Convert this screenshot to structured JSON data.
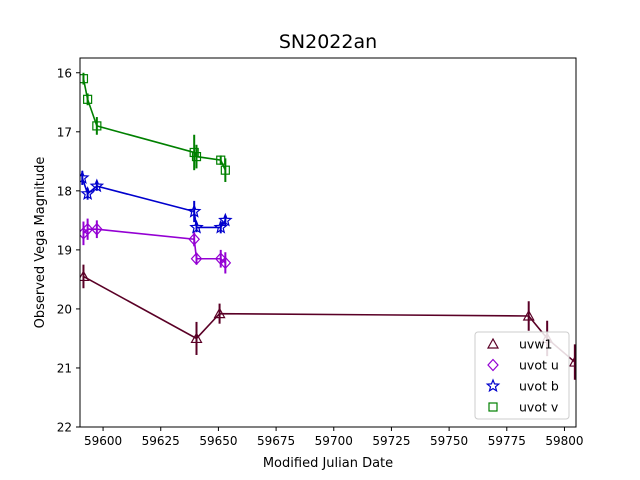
{
  "chart_data": {
    "type": "scatter",
    "title": "SN2022an",
    "xlabel": "Modified Julian Date",
    "ylabel": "Observed Vega Magnitude",
    "xlim": [
      59590,
      59805
    ],
    "ylim": [
      22,
      15.75
    ],
    "y_inverted": true,
    "xticks": [
      59600,
      59625,
      59650,
      59675,
      59700,
      59725,
      59750,
      59775,
      59800
    ],
    "yticks": [
      16,
      17,
      18,
      19,
      20,
      21,
      22
    ],
    "grid": false,
    "legend_position": "bottom-right",
    "series": [
      {
        "name": "uvw1",
        "color": "#5a0026",
        "marker": "triangle",
        "points": [
          {
            "x": 59591.5,
            "y": 19.45,
            "err": 0.2
          },
          {
            "x": 59640.5,
            "y": 20.5,
            "err": 0.28
          },
          {
            "x": 59650.5,
            "y": 20.08,
            "err": 0.17
          },
          {
            "x": 59784.5,
            "y": 20.12,
            "err": 0.25
          },
          {
            "x": 59792.5,
            "y": 20.5,
            "err": 0.3
          },
          {
            "x": 59804.5,
            "y": 20.9,
            "err": 0.3
          }
        ]
      },
      {
        "name": "uvot u",
        "color": "#9400d3",
        "marker": "diamond",
        "points": [
          {
            "x": 59591.5,
            "y": 18.72,
            "err": 0.2
          },
          {
            "x": 59593.3,
            "y": 18.65,
            "err": 0.18
          },
          {
            "x": 59597.3,
            "y": 18.65,
            "err": 0.15
          },
          {
            "x": 59639.5,
            "y": 18.82,
            "err": 0.12
          },
          {
            "x": 59640.5,
            "y": 19.15,
            "err": 0.1
          },
          {
            "x": 59651.0,
            "y": 19.15,
            "err": 0.15
          },
          {
            "x": 59653.0,
            "y": 19.22,
            "err": 0.18
          }
        ]
      },
      {
        "name": "uvot b",
        "color": "#0000cd",
        "marker": "star",
        "points": [
          {
            "x": 59591.0,
            "y": 17.78,
            "err": 0.12
          },
          {
            "x": 59593.3,
            "y": 18.05,
            "err": 0.1
          },
          {
            "x": 59597.3,
            "y": 17.92,
            "err": 0.08
          },
          {
            "x": 59639.5,
            "y": 18.35,
            "err": 0.18
          },
          {
            "x": 59640.5,
            "y": 18.62,
            "err": 0.08
          },
          {
            "x": 59651.0,
            "y": 18.62,
            "err": 0.1
          },
          {
            "x": 59653.0,
            "y": 18.5,
            "err": 0.08
          }
        ]
      },
      {
        "name": "uvot v",
        "color": "#008000",
        "marker": "square",
        "points": [
          {
            "x": 59591.5,
            "y": 16.1,
            "err": 0.1
          },
          {
            "x": 59593.3,
            "y": 16.45,
            "err": 0.1
          },
          {
            "x": 59597.3,
            "y": 16.9,
            "err": 0.15
          },
          {
            "x": 59639.5,
            "y": 17.35,
            "err": 0.3
          },
          {
            "x": 59640.5,
            "y": 17.42,
            "err": 0.2
          },
          {
            "x": 59651.0,
            "y": 17.48,
            "err": 0.08
          },
          {
            "x": 59653.0,
            "y": 17.65,
            "err": 0.2
          }
        ]
      }
    ]
  }
}
